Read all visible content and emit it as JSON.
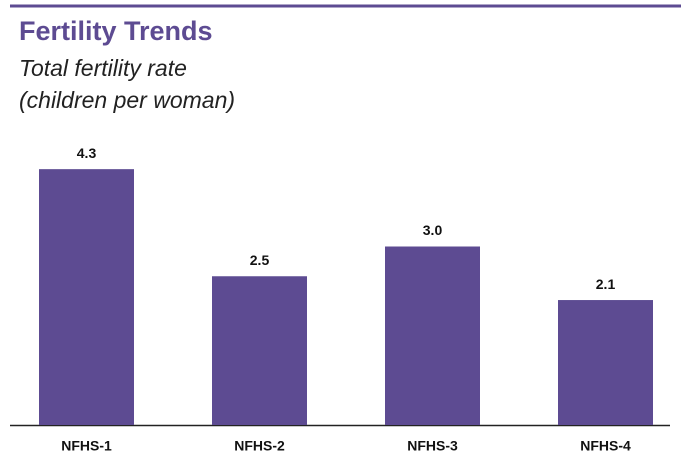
{
  "chart_data": {
    "type": "bar",
    "title": "Fertility Trends",
    "subtitle": [
      "Total fertility rate",
      "(children per woman)"
    ],
    "categories": [
      "NFHS-1",
      "NFHS-2",
      "NFHS-3",
      "NFHS-4"
    ],
    "values": [
      4.3,
      2.5,
      3.0,
      2.1
    ],
    "value_labels": [
      "4.3",
      "2.5",
      "3.0",
      "2.1"
    ],
    "color": "#5d4b92"
  }
}
